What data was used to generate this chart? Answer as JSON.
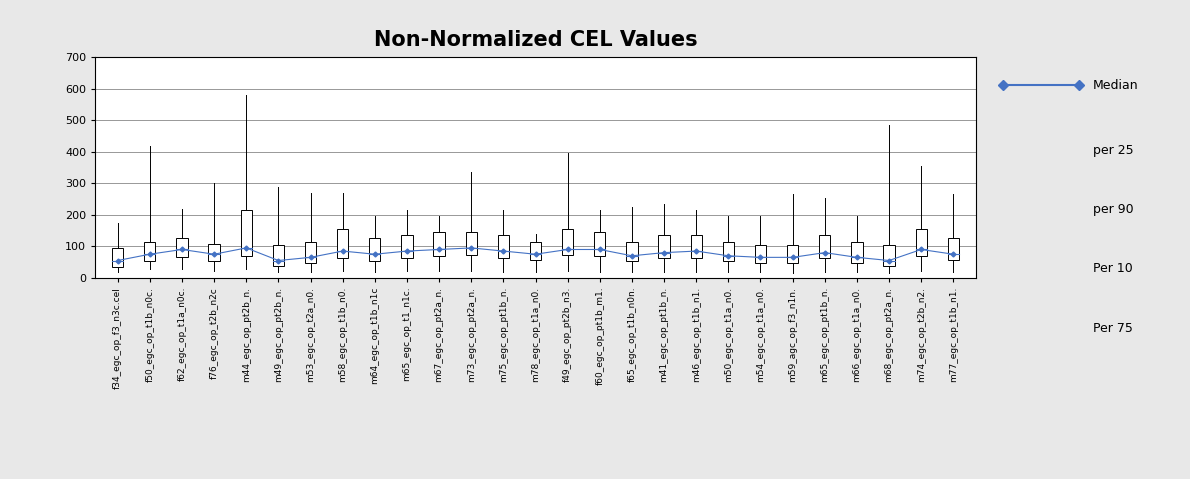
{
  "title": "Non-Normalized CEL Values",
  "ylim": [
    0,
    700
  ],
  "yticks": [
    0,
    100,
    200,
    300,
    400,
    500,
    600,
    700
  ],
  "categories": [
    "f34_egc_op_f3_n3c.cel",
    "f50_egc_op_t1b_n0c.",
    "f62_egc_op_t1a_n0c.",
    "f76_egc_op_t2b_n2c",
    "m44_egc_op_pt2b_n.",
    "m49_egc_op_pt2b_n.",
    "m53_egc_op_t2a_n0.",
    "m58_egc_op_t1b_n0.",
    "m64_egc_op_t1b_n1c",
    "m65_egc_op_t1_n1c.",
    "m67_egc_op_pt2a_n.",
    "m73_egc_op_pt2a_n.",
    "m75_egc_op_pt1b_n.",
    "m78_egc_op_t1a_n0.",
    "f49_egc_op_pt2b_n3.",
    "f60_egc_op_pt1b_m1.",
    "f65_egc_op_t1b_n0n.",
    "m41_egc_op_pt1b_n.",
    "m46_egc_op_t1b_n1.",
    "m50_egc_op_t1a_n0.",
    "m54_egc_op_t1a_n0.",
    "m59_agc_op_f3_n1n.",
    "m65_egc_op_pt1b_n.",
    "m66_egc_op_t1a_n0.",
    "m68_egc_op_pt2a_n.",
    "m74_egc_op_t2b_n2.",
    "m77_egc_op_t1b_n1."
  ],
  "medians": [
    55,
    75,
    90,
    75,
    95,
    55,
    65,
    85,
    75,
    85,
    90,
    95,
    85,
    75,
    90,
    90,
    70,
    80,
    85,
    70,
    65,
    65,
    80,
    65,
    55,
    90,
    75
  ],
  "q25": [
    35,
    55,
    65,
    55,
    70,
    38,
    48,
    62,
    52,
    62,
    68,
    72,
    62,
    58,
    72,
    68,
    52,
    62,
    62,
    52,
    48,
    48,
    62,
    48,
    38,
    68,
    58
  ],
  "q75": [
    95,
    115,
    125,
    108,
    215,
    105,
    115,
    155,
    125,
    135,
    145,
    145,
    135,
    115,
    155,
    145,
    115,
    135,
    135,
    115,
    105,
    105,
    135,
    115,
    105,
    155,
    125
  ],
  "per10": [
    18,
    28,
    28,
    22,
    28,
    18,
    18,
    22,
    18,
    22,
    22,
    22,
    18,
    18,
    22,
    18,
    18,
    18,
    18,
    18,
    18,
    14,
    18,
    18,
    14,
    22,
    18
  ],
  "per90": [
    175,
    420,
    220,
    300,
    580,
    290,
    270,
    270,
    195,
    215,
    195,
    335,
    215,
    138,
    395,
    215,
    225,
    235,
    215,
    195,
    195,
    265,
    255,
    195,
    485,
    355,
    265
  ],
  "background_color": "#e8e8e8",
  "plot_background": "#ffffff",
  "box_facecolor": "#ffffff",
  "box_edgecolor": "#000000",
  "whisker_color": "#000000",
  "median_line_color": "#4472c4",
  "median_marker": "D",
  "legend_labels": [
    "Median",
    "per 25",
    "per 90",
    "Per 10",
    "Per 75"
  ],
  "title_fontsize": 15,
  "tick_fontsize": 6.5
}
